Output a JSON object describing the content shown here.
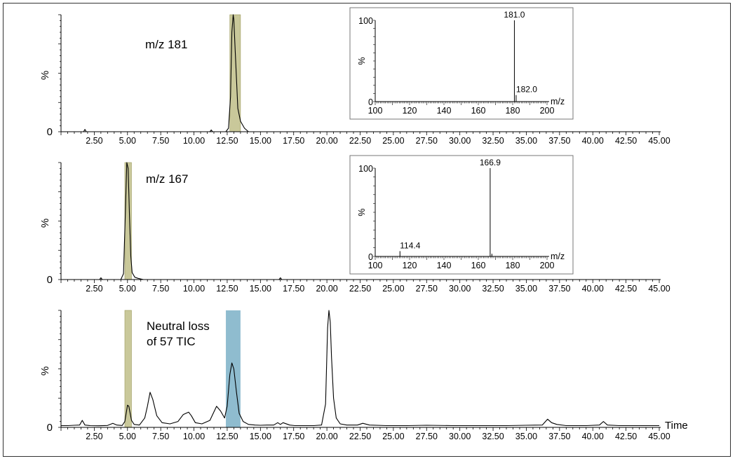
{
  "colors": {
    "highlight_olive": "#c9c89a",
    "highlight_olive_edge": "#9c9a5b",
    "highlight_blue": "#8fbccf",
    "trace": "#000000"
  },
  "chart_data": [
    {
      "type": "line",
      "panel_label": "m/z 181",
      "ylabel": "%",
      "y_zero_label": "0",
      "xlim": [
        0,
        45
      ],
      "x_ticks": [
        "2.50",
        "5.00",
        "7.50",
        "10.00",
        "12.50",
        "15.00",
        "17.50",
        "20.00",
        "22.50",
        "25.00",
        "27.50",
        "30.00",
        "32.50",
        "35.00",
        "37.50",
        "40.00",
        "42.50",
        "45.00"
      ],
      "highlights": [
        {
          "x_range": [
            12.7,
            13.5
          ],
          "color": "olive"
        }
      ],
      "series": [
        {
          "x": [
            0,
            1.7,
            1.8,
            1.9,
            11.2,
            11.3,
            11.4,
            12.4,
            12.6,
            12.75,
            12.85,
            12.95,
            13.0,
            13.1,
            13.2,
            13.3,
            13.5,
            13.8,
            14.1,
            45
          ],
          "y": [
            0,
            0,
            2,
            0,
            0,
            1.5,
            0,
            0,
            3,
            30,
            85,
            100,
            96,
            70,
            45,
            20,
            9,
            3,
            0,
            0
          ]
        }
      ],
      "inset": {
        "ylabel": "%",
        "xlabel": "m/z",
        "y_ticks": [
          "100",
          "0"
        ],
        "x_ticks": [
          "100",
          "120",
          "140",
          "160",
          "180",
          "200"
        ],
        "xlim": [
          100,
          200
        ],
        "ylim": [
          0,
          100
        ],
        "peaks": [
          {
            "mz": 181.0,
            "intensity": 100,
            "label": "181.0"
          },
          {
            "mz": 182.0,
            "intensity": 8,
            "label": "182.0"
          }
        ]
      }
    },
    {
      "type": "line",
      "panel_label": "m/z 167",
      "ylabel": "%",
      "y_zero_label": "0",
      "xlim": [
        0,
        45
      ],
      "x_ticks": [
        "2.50",
        "5.00",
        "7.50",
        "10.00",
        "12.50",
        "15.00",
        "17.50",
        "20.00",
        "22.50",
        "25.00",
        "27.50",
        "30.00",
        "32.50",
        "35.00",
        "37.50",
        "40.00",
        "42.50",
        "45.00"
      ],
      "highlights": [
        {
          "x_range": [
            4.8,
            5.3
          ],
          "color": "olive"
        }
      ],
      "series": [
        {
          "x": [
            0,
            2.9,
            3.0,
            3.1,
            4.5,
            4.7,
            4.85,
            4.95,
            5.05,
            5.15,
            5.25,
            5.35,
            5.55,
            5.8,
            6.2,
            16.4,
            16.5,
            16.6,
            45
          ],
          "y": [
            0,
            0,
            1.5,
            0,
            0,
            5,
            60,
            100,
            95,
            55,
            20,
            6,
            2,
            1,
            0,
            0,
            1.5,
            0,
            0
          ]
        }
      ],
      "inset": {
        "ylabel": "%",
        "xlabel": "m/z",
        "y_ticks": [
          "100",
          "0"
        ],
        "x_ticks": [
          "100",
          "120",
          "140",
          "160",
          "180",
          "200"
        ],
        "xlim": [
          100,
          200
        ],
        "ylim": [
          0,
          100
        ],
        "peaks": [
          {
            "mz": 166.9,
            "intensity": 100,
            "label": "166.9"
          },
          {
            "mz": 114.4,
            "intensity": 6,
            "label": "114.4"
          },
          {
            "mz": 167.9,
            "intensity": 3,
            "label": ""
          }
        ]
      }
    },
    {
      "type": "line",
      "panel_label_lines": [
        "Neutral loss",
        "of 57 TIC"
      ],
      "ylabel": "%",
      "y_zero_label": "0",
      "xlabel": "Time",
      "xlim": [
        0,
        45
      ],
      "x_ticks": [
        "2.50",
        "5.00",
        "7.50",
        "10.00",
        "12.50",
        "15.00",
        "17.50",
        "20.00",
        "22.50",
        "25.00",
        "27.50",
        "30.00",
        "32.50",
        "35.00",
        "37.50",
        "40.00",
        "42.50",
        "45.00"
      ],
      "highlights": [
        {
          "x_range": [
            4.8,
            5.3
          ],
          "color": "olive"
        },
        {
          "x_range": [
            12.4,
            13.5
          ],
          "color": "blue"
        }
      ],
      "series": [
        {
          "x": [
            0,
            0.5,
            1.0,
            1.4,
            1.6,
            1.8,
            2.2,
            2.8,
            3.5,
            3.9,
            4.2,
            4.6,
            4.8,
            5.0,
            5.1,
            5.3,
            5.5,
            5.9,
            6.3,
            6.5,
            6.7,
            6.9,
            7.2,
            7.6,
            8.2,
            8.8,
            9.2,
            9.6,
            9.8,
            10.1,
            10.6,
            11.2,
            11.7,
            12.0,
            12.3,
            12.5,
            12.7,
            12.85,
            13.0,
            13.2,
            13.4,
            13.7,
            14.1,
            14.6,
            15.0,
            15.5,
            16.0,
            16.3,
            16.5,
            16.7,
            17.2,
            17.6,
            18.2,
            19.0,
            19.6,
            19.9,
            20.05,
            20.15,
            20.25,
            20.35,
            20.5,
            20.7,
            21.0,
            21.5,
            22.3,
            22.7,
            23.2,
            24.5,
            26.0,
            27.5,
            29.5,
            31.5,
            33.5,
            35.0,
            36.2,
            36.6,
            36.9,
            37.3,
            38.0,
            39.5,
            40.5,
            40.8,
            41.1,
            42.0,
            43.5,
            45
          ],
          "y": [
            1.5,
            1.5,
            1.8,
            2.0,
            6.0,
            2.0,
            1.5,
            1.4,
            1.6,
            3.5,
            2.0,
            1.6,
            5.0,
            19.0,
            18.0,
            6.0,
            2.5,
            2.0,
            8.0,
            18.0,
            30.0,
            24.0,
            10.0,
            4.0,
            3.0,
            5.0,
            11.0,
            13.0,
            10.0,
            4.0,
            3.0,
            6.0,
            18.0,
            14.0,
            8.0,
            18.0,
            45.0,
            55.0,
            50.0,
            30.0,
            12.0,
            5.0,
            2.5,
            2.0,
            1.8,
            2.0,
            2.0,
            4.0,
            2.5,
            4.0,
            2.0,
            1.5,
            1.5,
            1.5,
            2.0,
            20.0,
            85.0,
            100.0,
            90.0,
            60.0,
            25.0,
            8.0,
            3.0,
            2.0,
            2.0,
            3.5,
            2.0,
            1.5,
            1.5,
            1.8,
            1.5,
            1.5,
            1.5,
            1.8,
            2.0,
            7.0,
            4.0,
            2.5,
            1.5,
            1.5,
            2.0,
            5.0,
            2.0,
            1.5,
            1.5,
            1.5
          ]
        }
      ]
    }
  ]
}
